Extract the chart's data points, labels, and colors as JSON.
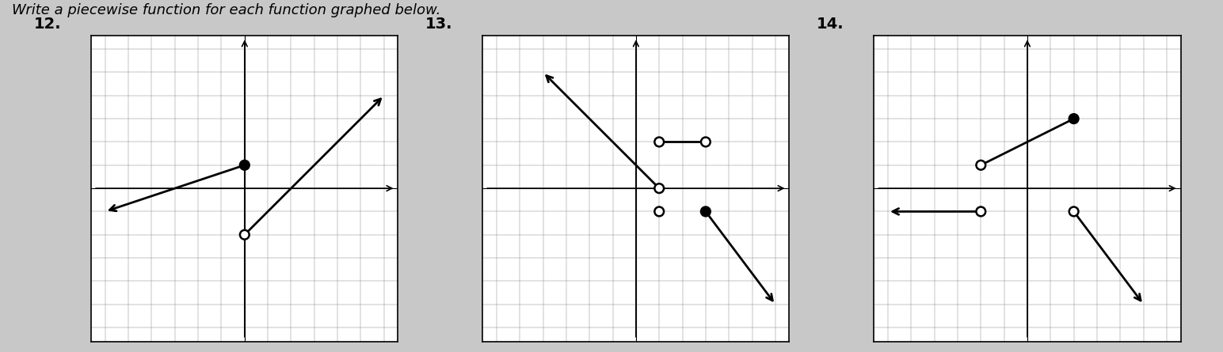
{
  "title": "Write a piecewise function for each function graphed below.",
  "problems": [
    {
      "label": "12.",
      "xlim": [
        -6,
        6
      ],
      "ylim": [
        -6,
        6
      ],
      "grid_step": 1,
      "segments": [
        {
          "x": [
            -6,
            0
          ],
          "y": [
            -1,
            1
          ],
          "arrow_start": true,
          "arrow_end": false,
          "end_open": false
        },
        {
          "x": [
            0,
            6
          ],
          "y": [
            -2,
            4
          ],
          "arrow_start": false,
          "arrow_end": true,
          "start_open": true
        }
      ],
      "open_circles": [
        [
          0,
          -2
        ]
      ],
      "closed_circles": [
        [
          0,
          1
        ]
      ]
    },
    {
      "label": "13.",
      "xlim": [
        -6,
        6
      ],
      "ylim": [
        -6,
        6
      ],
      "grid_step": 1,
      "segments": [
        {
          "x": [
            -4,
            1
          ],
          "y": [
            5,
            0
          ],
          "arrow_start": true,
          "arrow_end": false,
          "end_open": true
        },
        {
          "x": [
            1,
            3
          ],
          "y": [
            2,
            2
          ],
          "arrow_start": false,
          "arrow_end": false,
          "start_open": true,
          "end_open": true
        },
        {
          "x": [
            3,
            6
          ],
          "y": [
            -1,
            -5
          ],
          "arrow_start": false,
          "arrow_end": true,
          "start_closed": true
        }
      ],
      "open_circles": [
        [
          1,
          0
        ],
        [
          1,
          2
        ],
        [
          3,
          2
        ],
        [
          1,
          -1
        ]
      ],
      "closed_circles": [
        [
          3,
          -1
        ]
      ]
    },
    {
      "label": "14.",
      "xlim": [
        -6,
        6
      ],
      "ylim": [
        -6,
        6
      ],
      "grid_step": 1,
      "segments": [
        {
          "x": [
            -2,
            2
          ],
          "y": [
            1,
            3
          ],
          "arrow_start": false,
          "arrow_end": false,
          "start_open": true,
          "end_closed": true
        },
        {
          "x": [
            -6,
            -2
          ],
          "y": [
            -1,
            -1
          ],
          "arrow_start": true,
          "arrow_end": false,
          "end_open": true
        },
        {
          "x": [
            2,
            5
          ],
          "y": [
            -1,
            -5
          ],
          "arrow_start": false,
          "arrow_end": true,
          "start_open": true
        }
      ],
      "open_circles": [
        [
          -2,
          1
        ],
        [
          -2,
          -1
        ],
        [
          2,
          -1
        ]
      ],
      "closed_circles": [
        [
          2,
          3
        ]
      ]
    }
  ],
  "page_bg": "#c8c8c8",
  "graph_bg": "#ffffff",
  "grid_color": "#888888",
  "axis_color": "#000000",
  "line_color": "#000000",
  "border_color": "#000000",
  "label_fontsize": 14,
  "title_fontsize": 13
}
